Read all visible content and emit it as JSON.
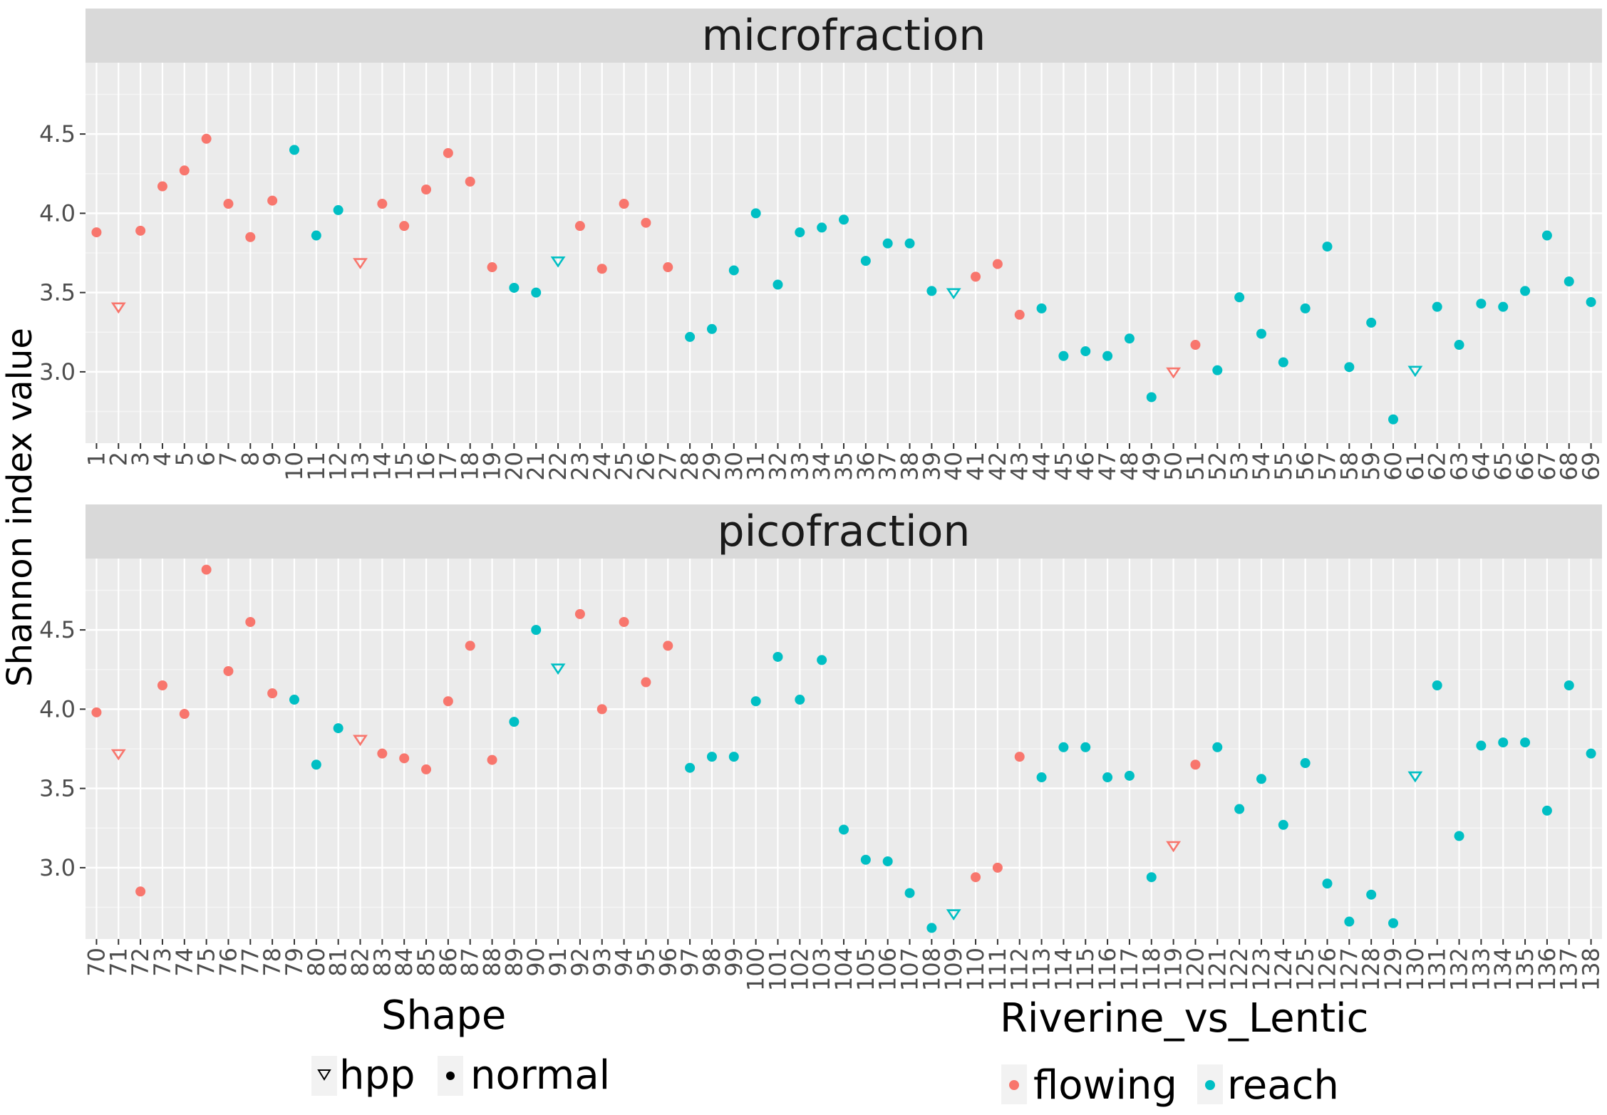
{
  "chart_data": {
    "type": "scatter",
    "ylabel": "Shannon index value",
    "yticks": [
      3.0,
      3.5,
      4.0,
      4.5
    ],
    "ylim": [
      2.55,
      4.95
    ],
    "grid": true,
    "colors": {
      "flowing": "#F8766D",
      "reach": "#00BFC4"
    },
    "panels": [
      {
        "title": "microfraction",
        "x": [
          "1",
          "2",
          "3",
          "4",
          "5",
          "6",
          "7",
          "8",
          "9",
          "10",
          "11",
          "12",
          "13",
          "14",
          "15",
          "16",
          "17",
          "18",
          "19",
          "20",
          "21",
          "22",
          "23",
          "24",
          "25",
          "26",
          "27",
          "28",
          "29",
          "30",
          "31",
          "32",
          "33",
          "34",
          "35",
          "36",
          "37",
          "38",
          "39",
          "40",
          "41",
          "42",
          "43",
          "44",
          "45",
          "46",
          "47",
          "48",
          "49",
          "50",
          "51",
          "52",
          "53",
          "54",
          "55",
          "56",
          "57",
          "58",
          "59",
          "60",
          "61",
          "62",
          "63",
          "64",
          "65",
          "66",
          "67",
          "68",
          "69"
        ],
        "y": [
          3.88,
          3.41,
          3.89,
          4.17,
          4.27,
          4.47,
          4.06,
          3.85,
          4.08,
          4.4,
          3.86,
          4.02,
          3.69,
          4.06,
          3.92,
          4.15,
          4.38,
          4.2,
          3.66,
          3.53,
          3.5,
          3.7,
          3.92,
          3.65,
          4.06,
          3.94,
          3.66,
          3.22,
          3.27,
          3.64,
          4.0,
          3.55,
          3.88,
          3.91,
          3.96,
          3.7,
          3.81,
          3.81,
          3.51,
          3.5,
          3.6,
          3.68,
          3.36,
          3.4,
          3.1,
          3.13,
          3.1,
          3.21,
          2.84,
          3.0,
          3.17,
          3.01,
          3.47,
          3.24,
          3.06,
          3.4,
          3.79,
          3.03,
          3.31,
          2.7,
          3.01,
          3.41,
          3.17,
          3.43,
          3.41,
          3.51,
          3.86,
          3.57,
          3.44
        ],
        "group": [
          "flowing",
          "flowing",
          "flowing",
          "flowing",
          "flowing",
          "flowing",
          "flowing",
          "flowing",
          "flowing",
          "reach",
          "reach",
          "reach",
          "flowing",
          "flowing",
          "flowing",
          "flowing",
          "flowing",
          "flowing",
          "flowing",
          "reach",
          "reach",
          "reach",
          "flowing",
          "flowing",
          "flowing",
          "flowing",
          "flowing",
          "reach",
          "reach",
          "reach",
          "reach",
          "reach",
          "reach",
          "reach",
          "reach",
          "reach",
          "reach",
          "reach",
          "reach",
          "reach",
          "flowing",
          "flowing",
          "flowing",
          "reach",
          "reach",
          "reach",
          "reach",
          "reach",
          "reach",
          "flowing",
          "flowing",
          "reach",
          "reach",
          "reach",
          "reach",
          "reach",
          "reach",
          "reach",
          "reach",
          "reach",
          "reach",
          "reach",
          "reach",
          "reach",
          "reach",
          "reach",
          "reach",
          "reach",
          "reach"
        ],
        "shape": [
          "normal",
          "hpp",
          "normal",
          "normal",
          "normal",
          "normal",
          "normal",
          "normal",
          "normal",
          "normal",
          "normal",
          "normal",
          "hpp",
          "normal",
          "normal",
          "normal",
          "normal",
          "normal",
          "normal",
          "normal",
          "normal",
          "hpp",
          "normal",
          "normal",
          "normal",
          "normal",
          "normal",
          "normal",
          "normal",
          "normal",
          "normal",
          "normal",
          "normal",
          "normal",
          "normal",
          "normal",
          "normal",
          "normal",
          "normal",
          "hpp",
          "normal",
          "normal",
          "normal",
          "normal",
          "normal",
          "normal",
          "normal",
          "normal",
          "normal",
          "hpp",
          "normal",
          "normal",
          "normal",
          "normal",
          "normal",
          "normal",
          "normal",
          "normal",
          "normal",
          "normal",
          "hpp",
          "normal",
          "normal",
          "normal",
          "normal",
          "normal",
          "normal",
          "normal",
          "normal"
        ]
      },
      {
        "title": "picofraction",
        "x": [
          "70",
          "71",
          "72",
          "73",
          "74",
          "75",
          "76",
          "77",
          "78",
          "79",
          "80",
          "81",
          "82",
          "83",
          "84",
          "85",
          "86",
          "87",
          "88",
          "89",
          "90",
          "91",
          "92",
          "93",
          "94",
          "95",
          "96",
          "97",
          "98",
          "99",
          "100",
          "101",
          "102",
          "103",
          "104",
          "105",
          "106",
          "107",
          "108",
          "109",
          "110",
          "111",
          "112",
          "113",
          "114",
          "115",
          "116",
          "117",
          "118",
          "119",
          "120",
          "121",
          "122",
          "123",
          "124",
          "125",
          "126",
          "127",
          "128",
          "129",
          "130",
          "131",
          "132",
          "133",
          "134",
          "135",
          "136",
          "137",
          "138"
        ],
        "y": [
          3.98,
          3.72,
          2.85,
          4.15,
          3.97,
          4.88,
          4.24,
          4.55,
          4.1,
          4.06,
          3.65,
          3.88,
          3.81,
          3.72,
          3.69,
          3.62,
          4.05,
          4.4,
          3.68,
          3.92,
          4.5,
          4.26,
          4.6,
          4.0,
          4.55,
          4.17,
          4.4,
          3.63,
          3.7,
          3.7,
          4.05,
          4.33,
          4.06,
          4.31,
          3.24,
          3.05,
          3.04,
          2.84,
          2.62,
          2.71,
          2.94,
          3.0,
          3.7,
          3.57,
          3.76,
          3.76,
          3.57,
          3.58,
          2.94,
          3.14,
          3.65,
          3.76,
          3.37,
          3.56,
          3.27,
          3.66,
          2.9,
          2.66,
          2.83,
          2.65,
          3.58,
          4.15,
          3.2,
          3.77,
          3.79,
          3.79,
          3.36,
          4.15,
          3.72
        ],
        "group": [
          "flowing",
          "flowing",
          "flowing",
          "flowing",
          "flowing",
          "flowing",
          "flowing",
          "flowing",
          "flowing",
          "reach",
          "reach",
          "reach",
          "flowing",
          "flowing",
          "flowing",
          "flowing",
          "flowing",
          "flowing",
          "flowing",
          "reach",
          "reach",
          "reach",
          "flowing",
          "flowing",
          "flowing",
          "flowing",
          "flowing",
          "reach",
          "reach",
          "reach",
          "reach",
          "reach",
          "reach",
          "reach",
          "reach",
          "reach",
          "reach",
          "reach",
          "reach",
          "reach",
          "flowing",
          "flowing",
          "flowing",
          "reach",
          "reach",
          "reach",
          "reach",
          "reach",
          "reach",
          "flowing",
          "flowing",
          "reach",
          "reach",
          "reach",
          "reach",
          "reach",
          "reach",
          "reach",
          "reach",
          "reach",
          "reach",
          "reach",
          "reach",
          "reach",
          "reach",
          "reach",
          "reach",
          "reach",
          "reach"
        ],
        "shape": [
          "normal",
          "hpp",
          "normal",
          "normal",
          "normal",
          "normal",
          "normal",
          "normal",
          "normal",
          "normal",
          "normal",
          "normal",
          "hpp",
          "normal",
          "normal",
          "normal",
          "normal",
          "normal",
          "normal",
          "normal",
          "normal",
          "hpp",
          "normal",
          "normal",
          "normal",
          "normal",
          "normal",
          "normal",
          "normal",
          "normal",
          "normal",
          "normal",
          "normal",
          "normal",
          "normal",
          "normal",
          "normal",
          "normal",
          "normal",
          "hpp",
          "normal",
          "normal",
          "normal",
          "normal",
          "normal",
          "normal",
          "normal",
          "normal",
          "normal",
          "hpp",
          "normal",
          "normal",
          "normal",
          "normal",
          "normal",
          "normal",
          "normal",
          "normal",
          "normal",
          "normal",
          "hpp",
          "normal",
          "normal",
          "normal",
          "normal",
          "normal",
          "normal",
          "normal",
          "normal"
        ]
      }
    ],
    "legends": [
      {
        "title": "Shape",
        "items": [
          {
            "label": "hpp",
            "symbol": "triangle-down-open"
          },
          {
            "label": "normal",
            "symbol": "circle"
          }
        ]
      },
      {
        "title": "Riverine_vs_Lentic",
        "items": [
          {
            "label": "flowing",
            "color": "#F8766D"
          },
          {
            "label": "reach",
            "color": "#00BFC4"
          }
        ]
      }
    ]
  }
}
